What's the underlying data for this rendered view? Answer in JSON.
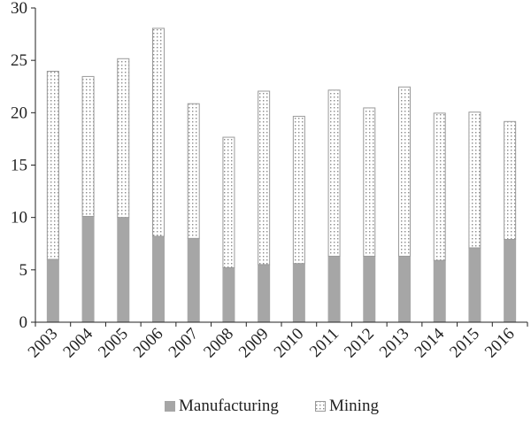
{
  "chart_data": {
    "type": "bar",
    "stacked": true,
    "categories": [
      "2003",
      "2004",
      "2005",
      "2006",
      "2007",
      "2008",
      "2009",
      "2010",
      "2011",
      "2012",
      "2013",
      "2014",
      "2015",
      "2016"
    ],
    "series": [
      {
        "name": "Manufacturing",
        "values": [
          6.0,
          10.1,
          10.0,
          8.2,
          8.0,
          5.2,
          5.5,
          5.6,
          6.3,
          6.3,
          6.3,
          5.9,
          7.1,
          7.9
        ],
        "color": "#a6a6a6",
        "pattern": "solid"
      },
      {
        "name": "Mining",
        "values": [
          18.0,
          13.4,
          15.2,
          19.9,
          12.9,
          12.5,
          16.6,
          14.1,
          15.9,
          14.2,
          16.2,
          14.1,
          13.0,
          11.3
        ],
        "color": "#ffffff",
        "pattern": "dotted"
      }
    ],
    "ylim": [
      0,
      30
    ],
    "yticks": [
      "0",
      "5",
      "10",
      "15",
      "20",
      "25",
      "30"
    ],
    "legend_position": "bottom",
    "grid": false
  }
}
